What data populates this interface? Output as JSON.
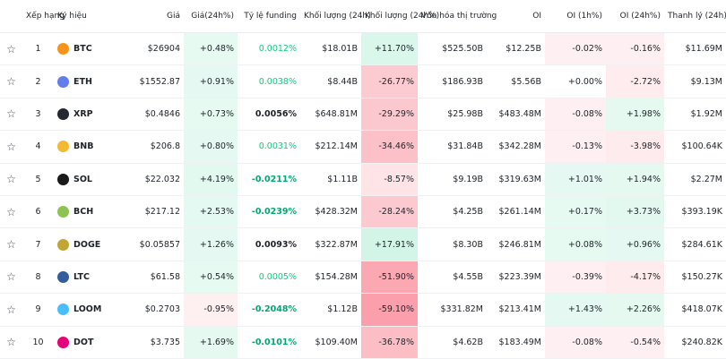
{
  "table": {
    "header": [
      "Xếp hạng",
      "Ký hiệu",
      "Giá",
      "Giá(24h%)",
      "Tỷ lệ funding",
      "Khối lượng (24h)",
      "Khối lượng (24h%)",
      "Vốn hóa thị trường",
      "OI",
      "OI (1h%)",
      "OI (24h%)",
      "Thanh lý (24h)"
    ],
    "rows": [
      [
        "1",
        "BTC",
        "$26904",
        "+0.48%",
        "0.0012%",
        "$18.01B",
        "+11.70%",
        "$525.50B",
        "$12.25B",
        "-0.02%",
        "-0.16%",
        "$11.69M"
      ],
      [
        "2",
        "ETH",
        "$1552.87",
        "+0.91%",
        "0.0038%",
        "$8.44B",
        "-26.77%",
        "$186.93B",
        "$5.56B",
        "+0.00%",
        "-2.72%",
        "$9.13M"
      ],
      [
        "3",
        "XRP",
        "$0.4846",
        "+0.73%",
        "0.0056%",
        "$648.81M",
        "-29.29%",
        "$25.98B",
        "$483.48M",
        "-0.08%",
        "+1.98%",
        "$1.92M"
      ],
      [
        "4",
        "BNB",
        "$206.8",
        "+0.80%",
        "0.0031%",
        "$212.14M",
        "-34.46%",
        "$31.84B",
        "$342.28M",
        "-0.13%",
        "-3.98%",
        "$100.64K"
      ],
      [
        "5",
        "SOL",
        "$22.032",
        "+4.19%",
        "-0.0211%",
        "$1.11B",
        "-8.57%",
        "$9.19B",
        "$319.63M",
        "+1.01%",
        "+1.94%",
        "$2.27M"
      ],
      [
        "6",
        "BCH",
        "$217.12",
        "+2.53%",
        "-0.0239%",
        "$428.32M",
        "-28.24%",
        "$4.25B",
        "$261.14M",
        "+0.17%",
        "+3.73%",
        "$393.19K"
      ],
      [
        "7",
        "DOGE",
        "$0.05857",
        "+1.26%",
        "0.0093%",
        "$322.87M",
        "+17.91%",
        "$8.30B",
        "$246.81M",
        "+0.08%",
        "+0.96%",
        "$284.61K"
      ],
      [
        "8",
        "LTC",
        "$61.58",
        "+0.54%",
        "0.0005%",
        "$154.28M",
        "-51.90%",
        "$4.55B",
        "$223.39M",
        "-0.39%",
        "-4.17%",
        "$150.27K"
      ],
      [
        "9",
        "LOOM",
        "$0.2703",
        "-0.95%",
        "-0.2048%",
        "$1.12B",
        "-59.10%",
        "$331.82M",
        "$213.41M",
        "+1.43%",
        "+2.26%",
        "$418.07K"
      ],
      [
        "10",
        "DOT",
        "$3.735",
        "+1.69%",
        "-0.0101%",
        "$109.40M",
        "-36.78%",
        "$4.62B",
        "$183.49M",
        "-0.08%",
        "-0.54%",
        "$240.82K"
      ]
    ]
  }
}
